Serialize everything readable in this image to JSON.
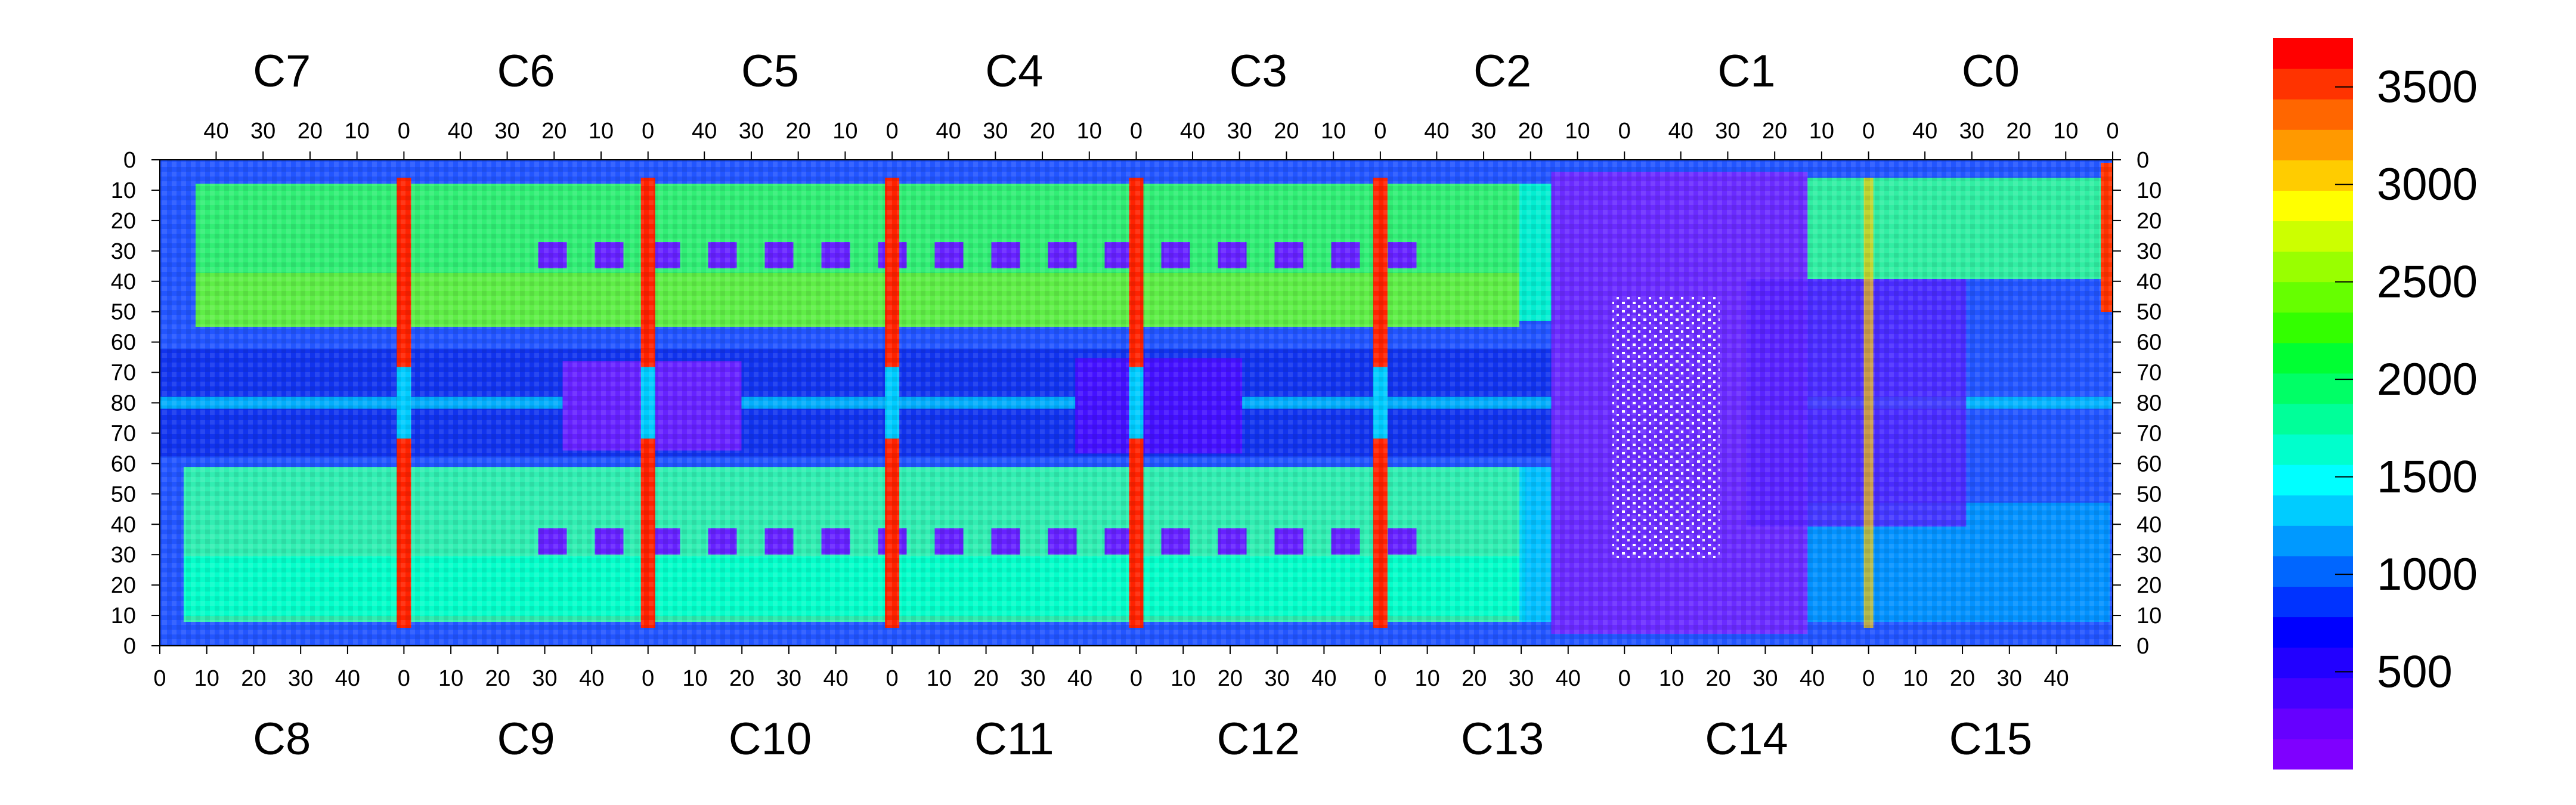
{
  "chart_data": {
    "type": "heatmap",
    "title": "",
    "xlabel": "",
    "ylabel": "",
    "top_chips": [
      "C7",
      "C6",
      "C5",
      "C4",
      "C3",
      "C2",
      "C1",
      "C0"
    ],
    "bottom_chips": [
      "C8",
      "C9",
      "C10",
      "C11",
      "C12",
      "C13",
      "C14",
      "C15"
    ],
    "top_x_ticks": [
      "40",
      "30",
      "20",
      "10",
      "0"
    ],
    "bottom_x_ticks": [
      "0",
      "10",
      "20",
      "30",
      "40"
    ],
    "left_y_ticks": [
      "0",
      "10",
      "20",
      "30",
      "40",
      "50",
      "60",
      "70",
      "80",
      "70",
      "60",
      "50",
      "40",
      "30",
      "20",
      "10",
      "0"
    ],
    "right_y_ticks": [
      "0",
      "10",
      "20",
      "30",
      "40",
      "50",
      "60",
      "70",
      "80",
      "70",
      "60",
      "50",
      "40",
      "30",
      "20",
      "10",
      "0"
    ],
    "x_range_per_chip": [
      0,
      52
    ],
    "y_range_per_half": [
      0,
      80
    ],
    "colorbar": {
      "range": [
        0,
        3750
      ],
      "ticks": [
        "500",
        "1000",
        "1500",
        "2000",
        "2500",
        "3000",
        "3500"
      ],
      "tick_values": [
        500,
        1000,
        1500,
        2000,
        2500,
        3000,
        3500
      ],
      "colors": [
        "#7f00ff",
        "#6600ff",
        "#4400ff",
        "#2200ff",
        "#0000ff",
        "#0033ff",
        "#0066ff",
        "#0099ff",
        "#00ccff",
        "#00ffff",
        "#00ffcc",
        "#00ff99",
        "#00ff66",
        "#00ff33",
        "#33ff00",
        "#66ff00",
        "#99ff00",
        "#ccff00",
        "#ffff00",
        "#ffcc00",
        "#ff9900",
        "#ff6600",
        "#ff3300",
        "#ff0000"
      ]
    },
    "grid": false,
    "legend": "right colorbar"
  }
}
